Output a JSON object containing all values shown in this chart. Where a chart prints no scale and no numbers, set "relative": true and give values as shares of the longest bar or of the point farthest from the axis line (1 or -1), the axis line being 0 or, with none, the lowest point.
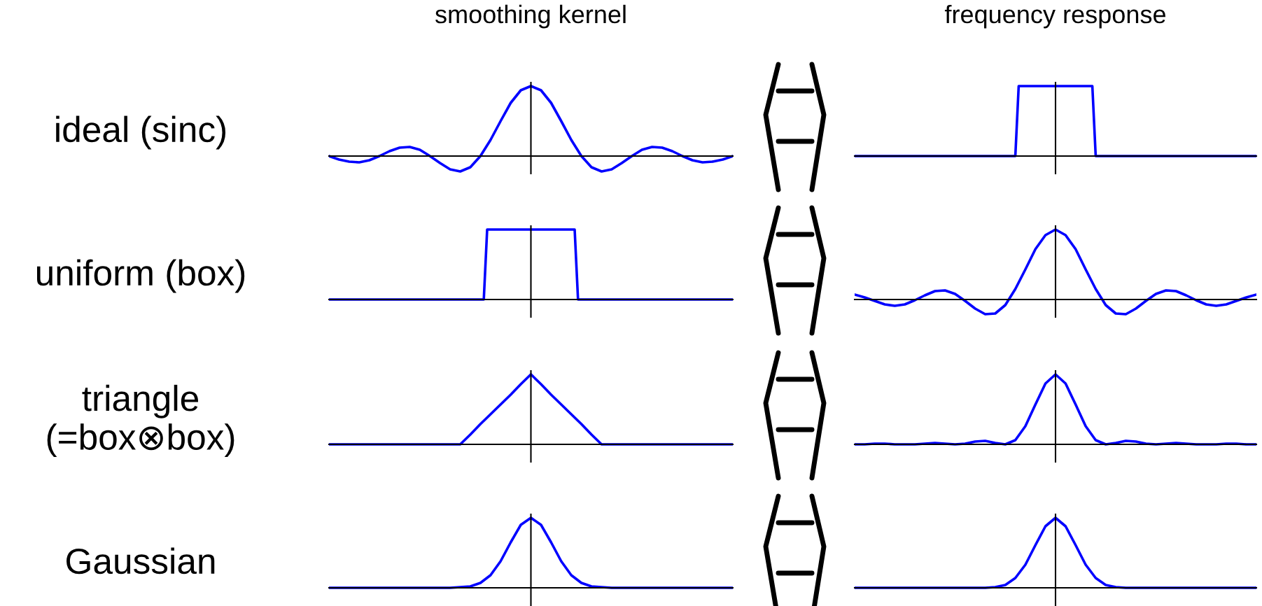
{
  "chart_data": [
    {
      "type": "line",
      "title": "smoothing kernel",
      "ylabel": "ideal (sinc)",
      "relative": true,
      "color": "#0000ff",
      "categories": [
        null,
        null,
        null,
        null,
        null,
        null,
        null,
        null,
        null,
        null,
        null,
        null,
        null,
        null,
        null,
        null,
        null,
        null,
        null,
        null,
        null,
        null,
        null,
        null,
        null,
        null,
        null,
        null,
        null,
        null,
        null,
        null,
        null,
        null,
        null,
        null,
        null,
        null,
        null,
        null,
        null
      ],
      "values": [
        0,
        -0.05,
        -0.08,
        -0.09,
        -0.06,
        0,
        0.07,
        0.12,
        0.13,
        0.09,
        0,
        -0.1,
        -0.19,
        -0.22,
        -0.16,
        0,
        0.23,
        0.5,
        0.76,
        0.94,
        1,
        0.94,
        0.76,
        0.5,
        0.23,
        0,
        -0.16,
        -0.22,
        -0.19,
        -0.1,
        0,
        0.09,
        0.13,
        0.12,
        0.07,
        0,
        -0.06,
        -0.09,
        -0.08,
        -0.05,
        0
      ]
    },
    {
      "type": "line",
      "title": "frequency response",
      "relative": true,
      "color": "#0000ff",
      "categories": [
        null,
        null,
        null,
        null,
        null,
        null,
        null,
        null,
        null,
        null,
        null,
        null,
        null,
        null,
        null,
        null,
        null,
        null,
        null,
        null,
        null,
        null,
        null,
        null,
        null,
        null,
        null,
        null,
        null,
        null,
        null,
        null,
        null,
        null,
        null,
        null,
        null,
        null,
        null,
        null,
        null,
        null,
        null,
        null,
        null,
        null,
        null,
        null,
        null,
        null,
        null,
        null,
        null,
        null,
        null,
        null,
        null,
        null,
        null,
        null,
        null,
        null,
        null,
        null,
        null,
        null,
        null,
        null,
        null,
        null,
        null,
        null,
        null,
        null,
        null,
        null,
        null,
        null,
        null,
        null,
        null,
        null,
        null,
        null,
        null,
        null,
        null,
        null,
        null,
        null,
        null,
        null,
        null,
        null,
        null,
        null,
        null,
        null,
        null,
        null,
        null,
        null,
        null,
        null,
        null,
        null,
        null,
        null,
        null,
        null,
        null,
        null,
        null,
        null,
        null,
        null,
        null,
        null,
        null,
        null,
        null
      ],
      "values": [
        0,
        0,
        0,
        0,
        0,
        0,
        0,
        0,
        0,
        0,
        0,
        0,
        0,
        0,
        0,
        0,
        0,
        0,
        0,
        0,
        0,
        0,
        0,
        0,
        0,
        0,
        0,
        0,
        0,
        0,
        0,
        0,
        0,
        0,
        0,
        0,
        0,
        0,
        0,
        0,
        0,
        0,
        0,
        0,
        0,
        0,
        0,
        0,
        0,
        1,
        1,
        1,
        1,
        1,
        1,
        1,
        1,
        1,
        1,
        1,
        1,
        1,
        1,
        1,
        1,
        1,
        1,
        1,
        1,
        1,
        1,
        1,
        0,
        0,
        0,
        0,
        0,
        0,
        0,
        0,
        0,
        0,
        0,
        0,
        0,
        0,
        0,
        0,
        0,
        0,
        0,
        0,
        0,
        0,
        0,
        0,
        0,
        0,
        0,
        0,
        0,
        0,
        0,
        0,
        0,
        0,
        0,
        0,
        0,
        0,
        0,
        0,
        0,
        0,
        0,
        0,
        0,
        0,
        0,
        0,
        0
      ]
    },
    {
      "type": "line",
      "ylabel": "uniform (box)",
      "relative": true,
      "color": "#0000ff",
      "categories": [
        null,
        null,
        null,
        null,
        null,
        null,
        null,
        null,
        null,
        null,
        null,
        null,
        null,
        null,
        null,
        null,
        null,
        null,
        null,
        null,
        null,
        null,
        null,
        null,
        null,
        null,
        null,
        null,
        null,
        null,
        null,
        null,
        null,
        null,
        null,
        null,
        null,
        null,
        null,
        null,
        null,
        null,
        null,
        null,
        null,
        null,
        null,
        null,
        null,
        null,
        null,
        null,
        null,
        null,
        null,
        null,
        null,
        null,
        null,
        null,
        null,
        null,
        null,
        null,
        null,
        null,
        null,
        null,
        null,
        null,
        null,
        null,
        null,
        null,
        null,
        null,
        null,
        null,
        null,
        null,
        null,
        null,
        null,
        null,
        null,
        null,
        null,
        null,
        null,
        null,
        null,
        null,
        null,
        null,
        null,
        null,
        null,
        null,
        null,
        null,
        null,
        null,
        null,
        null,
        null,
        null,
        null,
        null,
        null,
        null,
        null,
        null,
        null,
        null,
        null,
        null,
        null,
        null,
        null,
        null,
        null
      ],
      "values": [
        0,
        0,
        0,
        0,
        0,
        0,
        0,
        0,
        0,
        0,
        0,
        0,
        0,
        0,
        0,
        0,
        0,
        0,
        0,
        0,
        0,
        0,
        0,
        0,
        0,
        0,
        0,
        0,
        0,
        0,
        0,
        0,
        0,
        0,
        0,
        0,
        0,
        0,
        0,
        0,
        0,
        0,
        0,
        0,
        0,
        0,
        0,
        1,
        1,
        1,
        1,
        1,
        1,
        1,
        1,
        1,
        1,
        1,
        1,
        1,
        1,
        1,
        1,
        1,
        1,
        1,
        1,
        1,
        1,
        1,
        1,
        1,
        1,
        1,
        0,
        0,
        0,
        0,
        0,
        0,
        0,
        0,
        0,
        0,
        0,
        0,
        0,
        0,
        0,
        0,
        0,
        0,
        0,
        0,
        0,
        0,
        0,
        0,
        0,
        0,
        0,
        0,
        0,
        0,
        0,
        0,
        0,
        0,
        0,
        0,
        0,
        0,
        0,
        0,
        0,
        0,
        0,
        0,
        0,
        0,
        0
      ]
    },
    {
      "type": "line",
      "relative": true,
      "color": "#0000ff",
      "categories": [
        null,
        null,
        null,
        null,
        null,
        null,
        null,
        null,
        null,
        null,
        null,
        null,
        null,
        null,
        null,
        null,
        null,
        null,
        null,
        null,
        null,
        null,
        null,
        null,
        null,
        null,
        null,
        null,
        null,
        null,
        null,
        null,
        null,
        null,
        null,
        null,
        null,
        null,
        null,
        null,
        null
      ],
      "values": [
        0.07,
        0.03,
        -0.02,
        -0.07,
        -0.09,
        -0.07,
        -0.01,
        0.06,
        0.12,
        0.13,
        0.08,
        -0.02,
        -0.13,
        -0.21,
        -0.2,
        -0.08,
        0.15,
        0.43,
        0.72,
        0.92,
        1,
        0.92,
        0.72,
        0.43,
        0.15,
        -0.08,
        -0.2,
        -0.21,
        -0.13,
        -0.02,
        0.08,
        0.13,
        0.12,
        0.06,
        -0.01,
        -0.07,
        -0.09,
        -0.07,
        -0.02,
        0.03,
        0.07
      ]
    },
    {
      "type": "line",
      "ylabel": "triangle\n(=box⊗box)",
      "relative": true,
      "color": "#0000ff",
      "categories": [
        null,
        null,
        null,
        null,
        null,
        null,
        null,
        null,
        null,
        null,
        null,
        null,
        null,
        null,
        null,
        null,
        null,
        null,
        null,
        null,
        null,
        null,
        null,
        null,
        null,
        null,
        null,
        null,
        null,
        null,
        null,
        null,
        null,
        null,
        null,
        null,
        null,
        null,
        null,
        null,
        null
      ],
      "values": [
        0,
        0,
        0,
        0,
        0,
        0,
        0,
        0,
        0,
        0,
        0,
        0,
        0,
        0,
        0.14,
        0.29,
        0.43,
        0.57,
        0.71,
        0.86,
        1,
        0.86,
        0.71,
        0.57,
        0.43,
        0.29,
        0.14,
        0,
        0,
        0,
        0,
        0,
        0,
        0,
        0,
        0,
        0,
        0,
        0,
        0,
        0
      ]
    },
    {
      "type": "line",
      "relative": true,
      "color": "#0000ff",
      "categories": [
        null,
        null,
        null,
        null,
        null,
        null,
        null,
        null,
        null,
        null,
        null,
        null,
        null,
        null,
        null,
        null,
        null,
        null,
        null,
        null,
        null,
        null,
        null,
        null,
        null,
        null,
        null,
        null,
        null,
        null,
        null,
        null,
        null,
        null,
        null,
        null,
        null,
        null,
        null,
        null,
        null
      ],
      "values": [
        0,
        0,
        0.01,
        0.01,
        0,
        0,
        0,
        0.01,
        0.02,
        0.01,
        0,
        0.01,
        0.04,
        0.05,
        0.02,
        0,
        0.06,
        0.26,
        0.57,
        0.87,
        1,
        0.87,
        0.57,
        0.26,
        0.06,
        0,
        0.02,
        0.05,
        0.04,
        0.01,
        0,
        0.01,
        0.02,
        0.01,
        0,
        0,
        0,
        0.01,
        0.01,
        0,
        0
      ]
    },
    {
      "type": "line",
      "ylabel": "Gaussian",
      "relative": true,
      "color": "#0000ff",
      "categories": [
        null,
        null,
        null,
        null,
        null,
        null,
        null,
        null,
        null,
        null,
        null,
        null,
        null,
        null,
        null,
        null,
        null,
        null,
        null,
        null,
        null,
        null,
        null,
        null,
        null,
        null,
        null,
        null,
        null,
        null,
        null,
        null,
        null,
        null,
        null,
        null,
        null,
        null,
        null,
        null,
        null
      ],
      "values": [
        0,
        0,
        0,
        0,
        0,
        0,
        0,
        0,
        0,
        0,
        0,
        0,
        0,
        0.01,
        0.02,
        0.07,
        0.18,
        0.38,
        0.65,
        0.9,
        1,
        0.9,
        0.65,
        0.38,
        0.18,
        0.07,
        0.02,
        0.01,
        0,
        0,
        0,
        0,
        0,
        0,
        0,
        0,
        0,
        0,
        0,
        0,
        0
      ]
    },
    {
      "type": "line",
      "relative": true,
      "color": "#0000ff",
      "categories": [
        null,
        null,
        null,
        null,
        null,
        null,
        null,
        null,
        null,
        null,
        null,
        null,
        null,
        null,
        null,
        null,
        null,
        null,
        null,
        null,
        null,
        null,
        null,
        null,
        null,
        null,
        null,
        null,
        null,
        null,
        null,
        null,
        null,
        null,
        null,
        null,
        null,
        null,
        null,
        null,
        null
      ],
      "values": [
        0,
        0,
        0,
        0,
        0,
        0,
        0,
        0,
        0,
        0,
        0,
        0,
        0,
        0,
        0.01,
        0.04,
        0.14,
        0.33,
        0.61,
        0.88,
        1,
        0.88,
        0.61,
        0.33,
        0.14,
        0.04,
        0.01,
        0,
        0,
        0,
        0,
        0,
        0,
        0,
        0,
        0,
        0,
        0,
        0,
        0,
        0
      ]
    }
  ]
}
